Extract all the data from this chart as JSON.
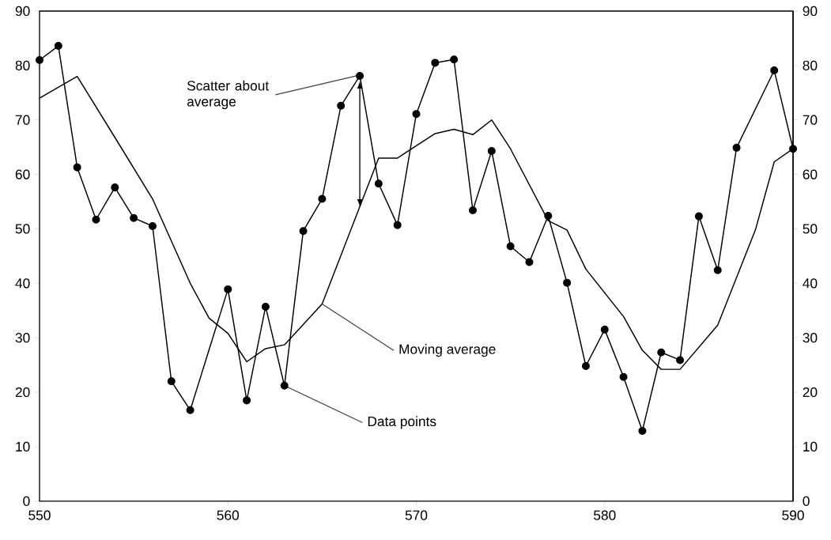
{
  "chart_data": {
    "type": "line",
    "xlim": [
      550,
      590
    ],
    "xticks": [
      550,
      560,
      570,
      580,
      590
    ],
    "ylim": [
      0,
      90
    ],
    "yticks": [
      0,
      10,
      20,
      30,
      40,
      50,
      60,
      70,
      80,
      90
    ],
    "y2lim": [
      0,
      90
    ],
    "y2ticks": [
      0,
      10,
      20,
      30,
      40,
      50,
      60,
      70,
      80,
      90
    ],
    "grid": false,
    "legend": false,
    "line_style": "solid",
    "series": [
      {
        "color": "#000000",
        "marker": "circle",
        "x": [
          550,
          551,
          552,
          553,
          554,
          555,
          556,
          557,
          558,
          560,
          561,
          562,
          563,
          564,
          565,
          566,
          567,
          568,
          569,
          570,
          571,
          572,
          573,
          574,
          575,
          576,
          577,
          578,
          579,
          580,
          581,
          582,
          583,
          584,
          585,
          586,
          587,
          589,
          590
        ],
        "values": [
          81,
          83.6,
          61.3,
          51.7,
          57.6,
          52,
          50.5,
          22,
          16.7,
          38.9,
          18.5,
          35.7,
          21.2,
          49.6,
          55.5,
          72.6,
          78.1,
          58.3,
          50.7,
          71.1,
          80.5,
          81.1,
          53.4,
          64.3,
          46.8,
          43.9,
          52.4,
          40.1,
          24.8,
          31.5,
          22.8,
          12.9,
          27.3,
          25.9,
          52.3,
          42.4,
          64.9,
          79.1,
          64.7
        ]
      },
      {
        "color": "#000000",
        "marker": "none",
        "x": [
          550,
          552,
          554,
          556,
          558,
          559,
          560,
          561,
          562,
          563,
          565,
          568,
          569,
          571,
          572,
          573,
          574,
          575,
          577,
          578,
          579,
          581,
          582,
          583,
          584,
          586,
          588,
          589,
          590
        ],
        "values": [
          74,
          78,
          66.8,
          55.5,
          40,
          33.6,
          30.8,
          25.6,
          28,
          28.7,
          36.2,
          63,
          63,
          67.5,
          68.3,
          67.3,
          70,
          64.7,
          51.5,
          49.8,
          42.6,
          33.9,
          27.7,
          24.2,
          24.2,
          32.3,
          49.8,
          62.3,
          64.7
        ]
      }
    ],
    "annotations": [
      {
        "text": "Scatter about average",
        "x": 567,
        "y": 78.1
      },
      {
        "text": "Moving average",
        "x": 565,
        "y": 36.2
      },
      {
        "text": "Data points",
        "x": 563,
        "y": 21.2
      }
    ]
  }
}
